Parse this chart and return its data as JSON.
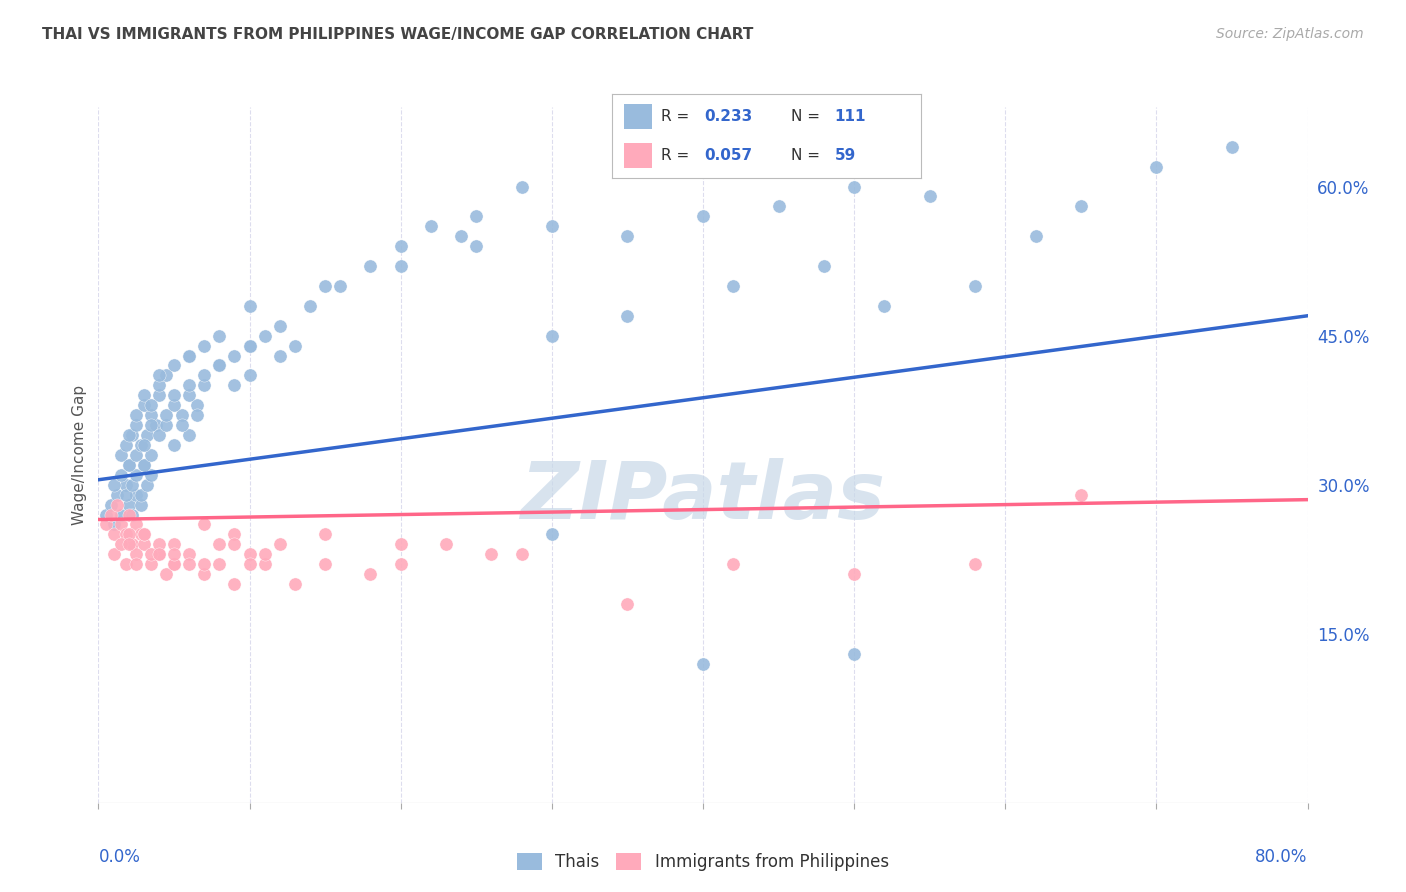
{
  "title": "THAI VS IMMIGRANTS FROM PHILIPPINES WAGE/INCOME GAP CORRELATION CHART",
  "source": "Source: ZipAtlas.com",
  "ylabel": "Wage/Income Gap",
  "yticks_right": [
    "60.0%",
    "45.0%",
    "30.0%",
    "15.0%"
  ],
  "yticks_right_vals": [
    0.6,
    0.45,
    0.3,
    0.15
  ],
  "xlim": [
    0.0,
    0.8
  ],
  "ylim": [
    -0.02,
    0.68
  ],
  "blue_color": "#99BBDD",
  "pink_color": "#FFAABB",
  "blue_line_color": "#3366CC",
  "pink_line_color": "#FF6688",
  "title_color": "#444444",
  "watermark_color": "#C8D8E8",
  "background_color": "#FFFFFF",
  "grid_color": "#DDDDEE",
  "axis_label_color": "#3366CC",
  "legend_r1": "0.233",
  "legend_n1": "111",
  "legend_r2": "0.057",
  "legend_n2": "59",
  "thai_x": [
    0.005,
    0.008,
    0.01,
    0.012,
    0.015,
    0.018,
    0.02,
    0.022,
    0.025,
    0.028,
    0.01,
    0.015,
    0.018,
    0.02,
    0.022,
    0.025,
    0.028,
    0.03,
    0.032,
    0.035,
    0.015,
    0.018,
    0.02,
    0.022,
    0.025,
    0.028,
    0.03,
    0.032,
    0.035,
    0.038,
    0.02,
    0.025,
    0.03,
    0.035,
    0.04,
    0.045,
    0.05,
    0.055,
    0.06,
    0.065,
    0.025,
    0.03,
    0.035,
    0.04,
    0.045,
    0.05,
    0.055,
    0.06,
    0.065,
    0.07,
    0.03,
    0.035,
    0.04,
    0.045,
    0.05,
    0.06,
    0.07,
    0.08,
    0.09,
    0.1,
    0.04,
    0.05,
    0.06,
    0.07,
    0.08,
    0.09,
    0.1,
    0.11,
    0.12,
    0.13,
    0.06,
    0.08,
    0.1,
    0.12,
    0.14,
    0.16,
    0.18,
    0.2,
    0.22,
    0.24,
    0.1,
    0.15,
    0.2,
    0.25,
    0.3,
    0.35,
    0.4,
    0.45,
    0.5,
    0.55,
    0.3,
    0.35,
    0.42,
    0.48,
    0.52,
    0.58,
    0.62,
    0.65,
    0.7,
    0.75,
    0.4,
    0.5,
    0.3,
    0.25,
    0.28
  ],
  "thai_y": [
    0.27,
    0.28,
    0.26,
    0.29,
    0.27,
    0.3,
    0.28,
    0.27,
    0.29,
    0.28,
    0.3,
    0.31,
    0.29,
    0.32,
    0.3,
    0.31,
    0.29,
    0.32,
    0.3,
    0.31,
    0.33,
    0.34,
    0.32,
    0.35,
    0.33,
    0.34,
    0.32,
    0.35,
    0.33,
    0.36,
    0.35,
    0.36,
    0.34,
    0.37,
    0.35,
    0.36,
    0.34,
    0.37,
    0.35,
    0.38,
    0.37,
    0.38,
    0.36,
    0.39,
    0.37,
    0.38,
    0.36,
    0.39,
    0.37,
    0.4,
    0.39,
    0.38,
    0.4,
    0.41,
    0.39,
    0.4,
    0.41,
    0.42,
    0.4,
    0.41,
    0.41,
    0.42,
    0.43,
    0.44,
    0.42,
    0.43,
    0.44,
    0.45,
    0.43,
    0.44,
    0.43,
    0.45,
    0.44,
    0.46,
    0.48,
    0.5,
    0.52,
    0.54,
    0.56,
    0.55,
    0.48,
    0.5,
    0.52,
    0.54,
    0.56,
    0.55,
    0.57,
    0.58,
    0.6,
    0.59,
    0.45,
    0.47,
    0.5,
    0.52,
    0.48,
    0.5,
    0.55,
    0.58,
    0.62,
    0.64,
    0.12,
    0.13,
    0.25,
    0.57,
    0.6
  ],
  "phil_x": [
    0.005,
    0.008,
    0.01,
    0.012,
    0.015,
    0.018,
    0.02,
    0.022,
    0.025,
    0.028,
    0.01,
    0.015,
    0.018,
    0.02,
    0.025,
    0.03,
    0.035,
    0.04,
    0.045,
    0.05,
    0.02,
    0.025,
    0.03,
    0.035,
    0.04,
    0.05,
    0.06,
    0.07,
    0.08,
    0.09,
    0.03,
    0.04,
    0.05,
    0.06,
    0.07,
    0.08,
    0.09,
    0.1,
    0.11,
    0.12,
    0.05,
    0.07,
    0.09,
    0.11,
    0.13,
    0.15,
    0.18,
    0.2,
    0.23,
    0.26,
    0.1,
    0.15,
    0.2,
    0.28,
    0.35,
    0.42,
    0.5,
    0.58,
    0.65
  ],
  "phil_y": [
    0.26,
    0.27,
    0.25,
    0.28,
    0.26,
    0.25,
    0.27,
    0.24,
    0.26,
    0.25,
    0.23,
    0.24,
    0.22,
    0.25,
    0.23,
    0.24,
    0.22,
    0.23,
    0.21,
    0.22,
    0.24,
    0.22,
    0.25,
    0.23,
    0.24,
    0.22,
    0.23,
    0.21,
    0.22,
    0.2,
    0.25,
    0.23,
    0.24,
    0.22,
    0.26,
    0.24,
    0.25,
    0.23,
    0.22,
    0.24,
    0.23,
    0.22,
    0.24,
    0.23,
    0.2,
    0.22,
    0.21,
    0.22,
    0.24,
    0.23,
    0.22,
    0.25,
    0.24,
    0.23,
    0.18,
    0.22,
    0.21,
    0.22,
    0.29
  ]
}
